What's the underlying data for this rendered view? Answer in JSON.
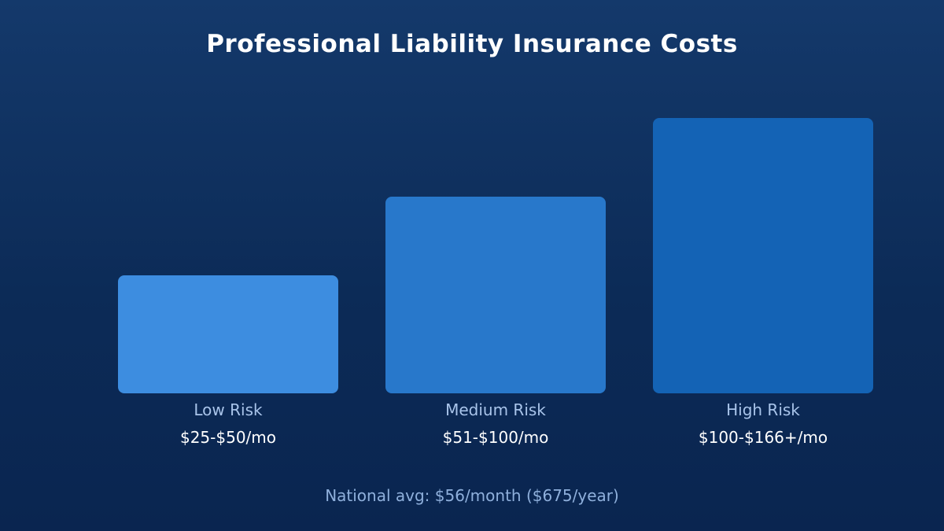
{
  "title": "Professional Liability Insurance Costs",
  "footnote": "National avg: $56/month ($675/year)",
  "colors": {
    "background_top": "#14396b",
    "background_bottom": "#0a2550",
    "category_label": "#a9c4ea",
    "value_label": "#ffffff",
    "footnote": "#8fb0dc"
  },
  "chart_data": {
    "type": "bar",
    "title": "Professional Liability Insurance Costs",
    "categories": [
      "Low Risk",
      "Medium Risk",
      "High Risk"
    ],
    "value_labels": [
      "$25-$50/mo",
      "$51-$100/mo",
      "$100-$166+/mo"
    ],
    "values": [
      1.5,
      2.5,
      3.5
    ],
    "bar_colors": [
      "#3d8de0",
      "#2878cb",
      "#1463b5"
    ],
    "ylim": [
      0,
      3.5
    ],
    "xlabel": "",
    "ylabel": "",
    "grid": false,
    "legend": "none"
  }
}
